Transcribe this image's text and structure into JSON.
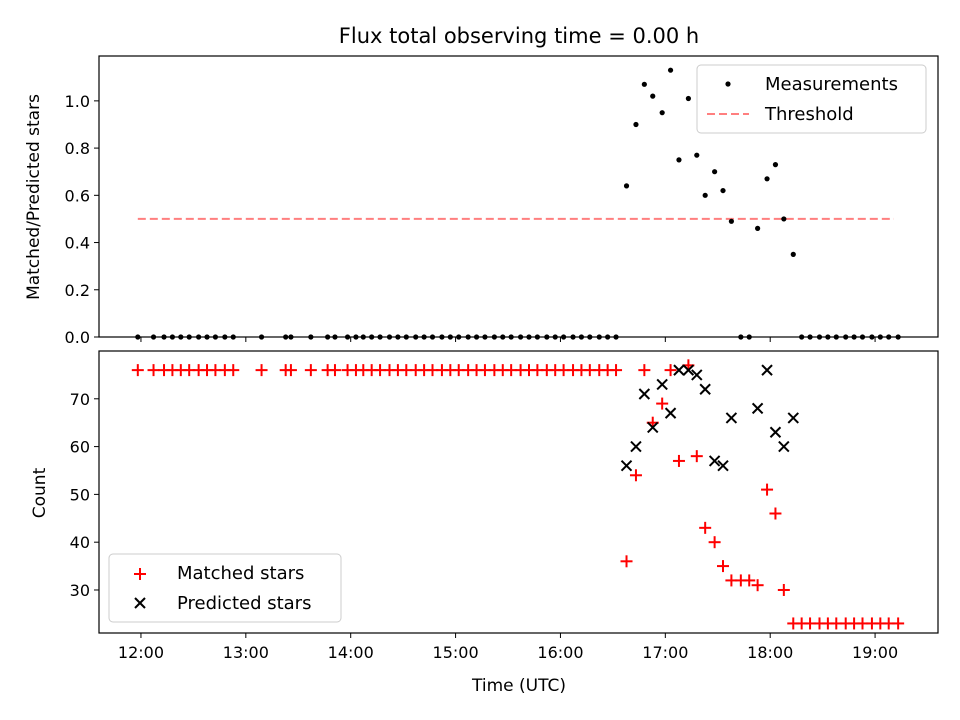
{
  "chart_data": [
    {
      "type": "scatter",
      "title": "Flux total observing time = 0.00 h",
      "xlabel": "",
      "ylabel": "Matched/Predicted stars",
      "xlim": [
        11.6,
        19.6
      ],
      "ylim": [
        0,
        1.19
      ],
      "yticks": [
        0.0,
        0.2,
        0.4,
        0.6,
        0.8,
        1.0
      ],
      "ytick_labels": [
        "0.0",
        "0.2",
        "0.4",
        "0.6",
        "0.8",
        "1.0"
      ],
      "legend_position": "top-right",
      "legend": [
        "Measurements",
        "Threshold"
      ],
      "series": [
        {
          "name": "Measurements",
          "marker": "dot",
          "color": "#000000",
          "x": [
            11.97,
            12.12,
            12.22,
            12.3,
            12.38,
            12.46,
            12.55,
            12.63,
            12.71,
            12.8,
            12.88,
            13.15,
            13.38,
            13.43,
            13.62,
            13.78,
            13.85,
            13.97,
            14.05,
            14.12,
            14.2,
            14.28,
            14.37,
            14.45,
            14.53,
            14.62,
            14.7,
            14.78,
            14.87,
            14.95,
            15.03,
            15.12,
            15.2,
            15.28,
            15.37,
            15.45,
            15.53,
            15.62,
            15.7,
            15.78,
            15.87,
            15.95,
            16.03,
            16.12,
            16.2,
            16.28,
            16.37,
            16.45,
            16.53,
            16.63,
            16.72,
            16.8,
            16.88,
            16.97,
            17.05,
            17.13,
            17.22,
            17.3,
            17.38,
            17.47,
            17.55,
            17.63,
            17.72,
            17.8,
            17.88,
            17.97,
            18.05,
            18.13,
            18.22,
            18.3,
            18.38,
            18.47,
            18.55,
            18.63,
            18.72,
            18.8,
            18.88,
            18.97,
            19.05,
            19.13,
            19.22
          ],
          "y": [
            0,
            0,
            0,
            0,
            0,
            0,
            0,
            0,
            0,
            0,
            0,
            0,
            0,
            0,
            0,
            0,
            0,
            0,
            0,
            0,
            0,
            0,
            0,
            0,
            0,
            0,
            0,
            0,
            0,
            0,
            0,
            0,
            0,
            0,
            0,
            0,
            0,
            0,
            0,
            0,
            0,
            0,
            0,
            0,
            0,
            0,
            0,
            0,
            0,
            0.64,
            0.9,
            1.07,
            1.02,
            0.95,
            1.13,
            0.75,
            1.01,
            0.77,
            0.6,
            0.7,
            0.62,
            0.49,
            0,
            0,
            0.46,
            0.67,
            0.73,
            0.5,
            0.35,
            0,
            0,
            0,
            0,
            0,
            0,
            0,
            0,
            0,
            0,
            0,
            0
          ]
        },
        {
          "name": "Threshold",
          "marker": "dashed-line",
          "color": "#ff7f7f",
          "x": [
            11.97,
            19.18
          ],
          "y": [
            0.5,
            0.5
          ]
        }
      ]
    },
    {
      "type": "scatter",
      "title": "",
      "xlabel": "Time (UTC)",
      "ylabel": "Count",
      "xlim": [
        11.6,
        19.6
      ],
      "ylim": [
        21,
        80
      ],
      "xticks": [
        12,
        13,
        14,
        15,
        16,
        17,
        18,
        19
      ],
      "xtick_labels": [
        "12:00",
        "13:00",
        "14:00",
        "15:00",
        "16:00",
        "17:00",
        "18:00",
        "19:00"
      ],
      "yticks": [
        30,
        40,
        50,
        60,
        70
      ],
      "ytick_labels": [
        "30",
        "40",
        "50",
        "60",
        "70"
      ],
      "legend_position": "bottom-left",
      "legend": [
        "Matched stars",
        "Predicted stars"
      ],
      "series": [
        {
          "name": "Matched stars",
          "marker": "plus",
          "color": "#ff0000",
          "x": [
            11.97,
            12.12,
            12.22,
            12.3,
            12.38,
            12.46,
            12.55,
            12.63,
            12.71,
            12.8,
            12.88,
            13.15,
            13.38,
            13.43,
            13.62,
            13.78,
            13.85,
            13.97,
            14.05,
            14.12,
            14.2,
            14.28,
            14.37,
            14.45,
            14.53,
            14.62,
            14.7,
            14.78,
            14.87,
            14.95,
            15.03,
            15.12,
            15.2,
            15.28,
            15.37,
            15.45,
            15.53,
            15.62,
            15.7,
            15.78,
            15.87,
            15.95,
            16.03,
            16.12,
            16.2,
            16.28,
            16.37,
            16.45,
            16.53,
            16.63,
            16.72,
            16.8,
            16.88,
            16.97,
            17.05,
            17.13,
            17.22,
            17.3,
            17.38,
            17.47,
            17.55,
            17.63,
            17.72,
            17.8,
            17.88,
            17.97,
            18.05,
            18.13,
            18.22,
            18.3,
            18.38,
            18.47,
            18.55,
            18.63,
            18.72,
            18.8,
            18.88,
            18.97,
            19.05,
            19.13,
            19.22
          ],
          "y": [
            76,
            76,
            76,
            76,
            76,
            76,
            76,
            76,
            76,
            76,
            76,
            76,
            76,
            76,
            76,
            76,
            76,
            76,
            76,
            76,
            76,
            76,
            76,
            76,
            76,
            76,
            76,
            76,
            76,
            76,
            76,
            76,
            76,
            76,
            76,
            76,
            76,
            76,
            76,
            76,
            76,
            76,
            76,
            76,
            76,
            76,
            76,
            76,
            76,
            36,
            54,
            76,
            65,
            69,
            76,
            57,
            77,
            58,
            43,
            40,
            35,
            32,
            32,
            32,
            31,
            51,
            46,
            30,
            23,
            23,
            23,
            23,
            23,
            23,
            23,
            23,
            23,
            23,
            23,
            23,
            23
          ]
        },
        {
          "name": "Predicted stars",
          "marker": "x",
          "color": "#000000",
          "x": [
            16.63,
            16.72,
            16.8,
            16.88,
            16.97,
            17.05,
            17.13,
            17.22,
            17.3,
            17.38,
            17.47,
            17.55,
            17.63,
            17.88,
            17.97,
            18.05,
            18.13,
            18.22
          ],
          "y": [
            56,
            60,
            71,
            64,
            73,
            67,
            76,
            76,
            75,
            72,
            57,
            56,
            66,
            68,
            76,
            63,
            60,
            66
          ]
        }
      ]
    }
  ]
}
